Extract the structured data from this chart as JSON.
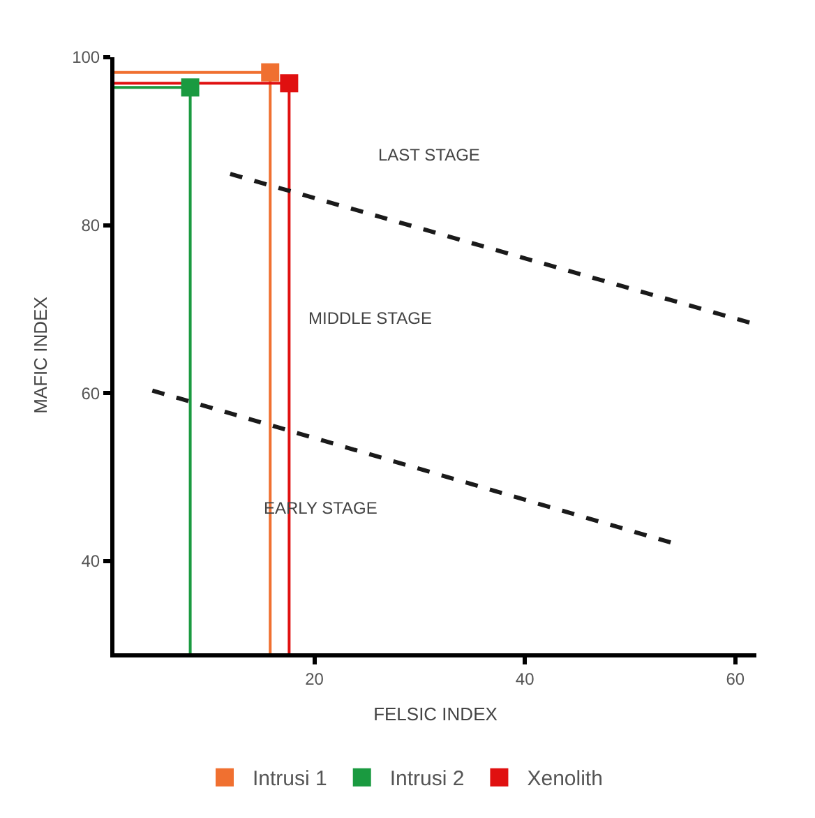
{
  "chart_data": {
    "type": "scatter",
    "xlabel": "FELSIC INDEX",
    "ylabel": "MAFIC INDEX",
    "xlim": [
      1,
      62
    ],
    "ylim": [
      29,
      100
    ],
    "xticks": [
      20,
      40,
      60
    ],
    "yticks": [
      40,
      60,
      80,
      100
    ],
    "legend": "bottom",
    "marker": "square",
    "series": [
      {
        "type": "line",
        "color": "#f07030",
        "marker": "none",
        "x": [
          1,
          15.8,
          15.8
        ],
        "values": [
          98.2,
          98.2,
          29
        ]
      },
      {
        "type": "line",
        "color": "#1a9a40",
        "marker": "none",
        "x": [
          1,
          8.2,
          8.2
        ],
        "values": [
          96.4,
          96.4,
          29
        ]
      },
      {
        "type": "line",
        "color": "#e01010",
        "marker": "none",
        "x": [
          1,
          17.6,
          17.6
        ],
        "values": [
          96.9,
          96.9,
          29
        ]
      },
      {
        "name": "Intrusi 1",
        "color": "#f07030",
        "x": [
          15.8
        ],
        "values": [
          98.2
        ]
      },
      {
        "name": "Intrusi 2",
        "color": "#1a9a40",
        "x": [
          8.2
        ],
        "values": [
          96.4
        ]
      },
      {
        "name": "Xenolith",
        "color": "#e01010",
        "x": [
          17.6
        ],
        "values": [
          96.9
        ]
      },
      {
        "type": "line",
        "color": "#1a1a1a",
        "line_style": "dashed",
        "marker": "none",
        "x": [
          12.0,
          61.6
        ],
        "values": [
          86.1,
          68.3
        ]
      },
      {
        "type": "line",
        "color": "#1a1a1a",
        "line_style": "dashed",
        "marker": "none",
        "x": [
          4.6,
          54.4
        ],
        "values": [
          60.3,
          42.0
        ]
      }
    ],
    "annotations": [
      "LAST STAGE",
      "MIDDLE STAGE",
      "EARLY STAGE"
    ]
  }
}
